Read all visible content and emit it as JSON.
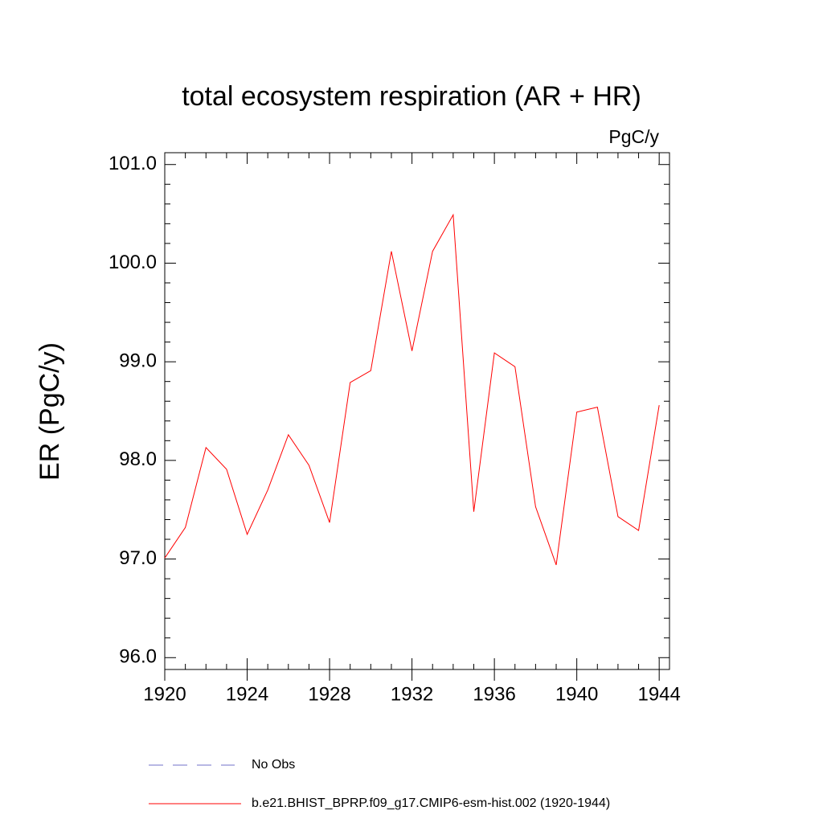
{
  "chart_data": {
    "type": "line",
    "title": "total ecosystem respiration (AR + HR)",
    "units_label": "PgC/y",
    "y_label": "ER  (PgC/y)",
    "x": [
      1920,
      1921,
      1922,
      1923,
      1924,
      1925,
      1926,
      1927,
      1928,
      1929,
      1930,
      1931,
      1932,
      1933,
      1934,
      1935,
      1936,
      1937,
      1938,
      1939,
      1940,
      1941,
      1942,
      1943,
      1944
    ],
    "series": [
      {
        "name": "b.e21.BHIST_BPRP.f09_g17.CMIP6-esm-hist.002 (1920-1944)",
        "color": "#ff0000",
        "values": [
          97.01,
          97.32,
          98.13,
          97.91,
          97.25,
          97.7,
          98.26,
          97.95,
          97.37,
          98.79,
          98.91,
          100.12,
          99.11,
          100.12,
          100.49,
          97.48,
          99.09,
          98.95,
          97.53,
          96.94,
          98.49,
          98.54,
          97.43,
          97.29,
          98.56
        ]
      }
    ],
    "legend_extra": [
      {
        "name": "No Obs",
        "color": "#7070c8",
        "style": "dashed"
      }
    ],
    "xlim": [
      1920,
      1944.5
    ],
    "ylim": [
      95.88,
      101.12
    ],
    "xticks": [
      1920,
      1924,
      1928,
      1932,
      1936,
      1940,
      1944
    ],
    "yticks": [
      {
        "value": 96,
        "label": "96.0"
      },
      {
        "value": 97,
        "label": "97.0"
      },
      {
        "value": 98,
        "label": "98.0"
      },
      {
        "value": 99,
        "label": "99.0"
      },
      {
        "value": 100,
        "label": "100.0"
      },
      {
        "value": 101,
        "label": "101.0"
      }
    ]
  }
}
